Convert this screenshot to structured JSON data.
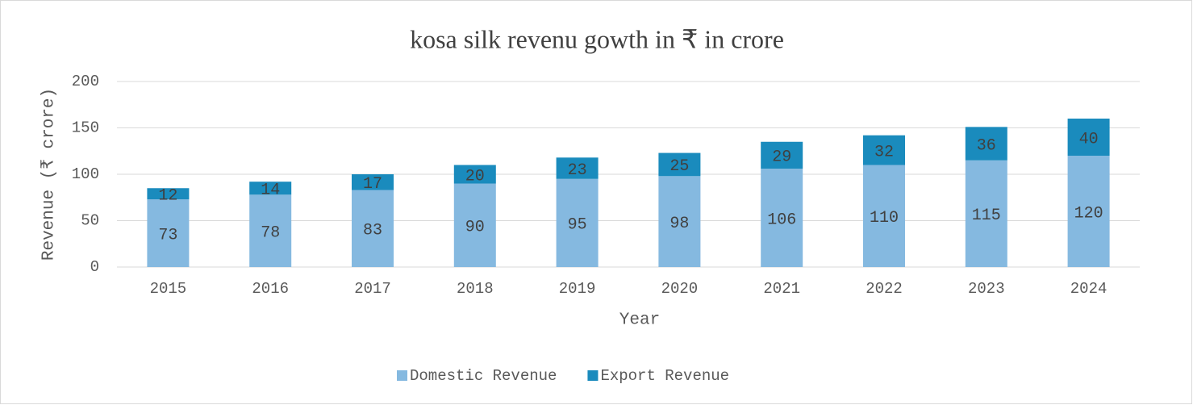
{
  "chart_data": {
    "type": "bar",
    "stacked": true,
    "title": "kosa silk revenu gowth in ₹ in crore",
    "x_label": "Year",
    "y_label": "Revenue (₹ crore)",
    "categories": [
      "2015",
      "2016",
      "2017",
      "2018",
      "2019",
      "2020",
      "2021",
      "2022",
      "2023",
      "2024"
    ],
    "series": [
      {
        "name": "Domestic Revenue",
        "color": "#85b9e0",
        "values": [
          73,
          78,
          83,
          90,
          95,
          98,
          106,
          110,
          115,
          120
        ]
      },
      {
        "name": "Export Revenue",
        "color": "#1a8bbd",
        "values": [
          12,
          14,
          17,
          20,
          23,
          25,
          29,
          32,
          36,
          40
        ]
      }
    ],
    "ylim": [
      0,
      200
    ],
    "yticks": [
      0,
      50,
      100,
      150,
      200
    ],
    "grid": true,
    "legend": "bottom"
  }
}
